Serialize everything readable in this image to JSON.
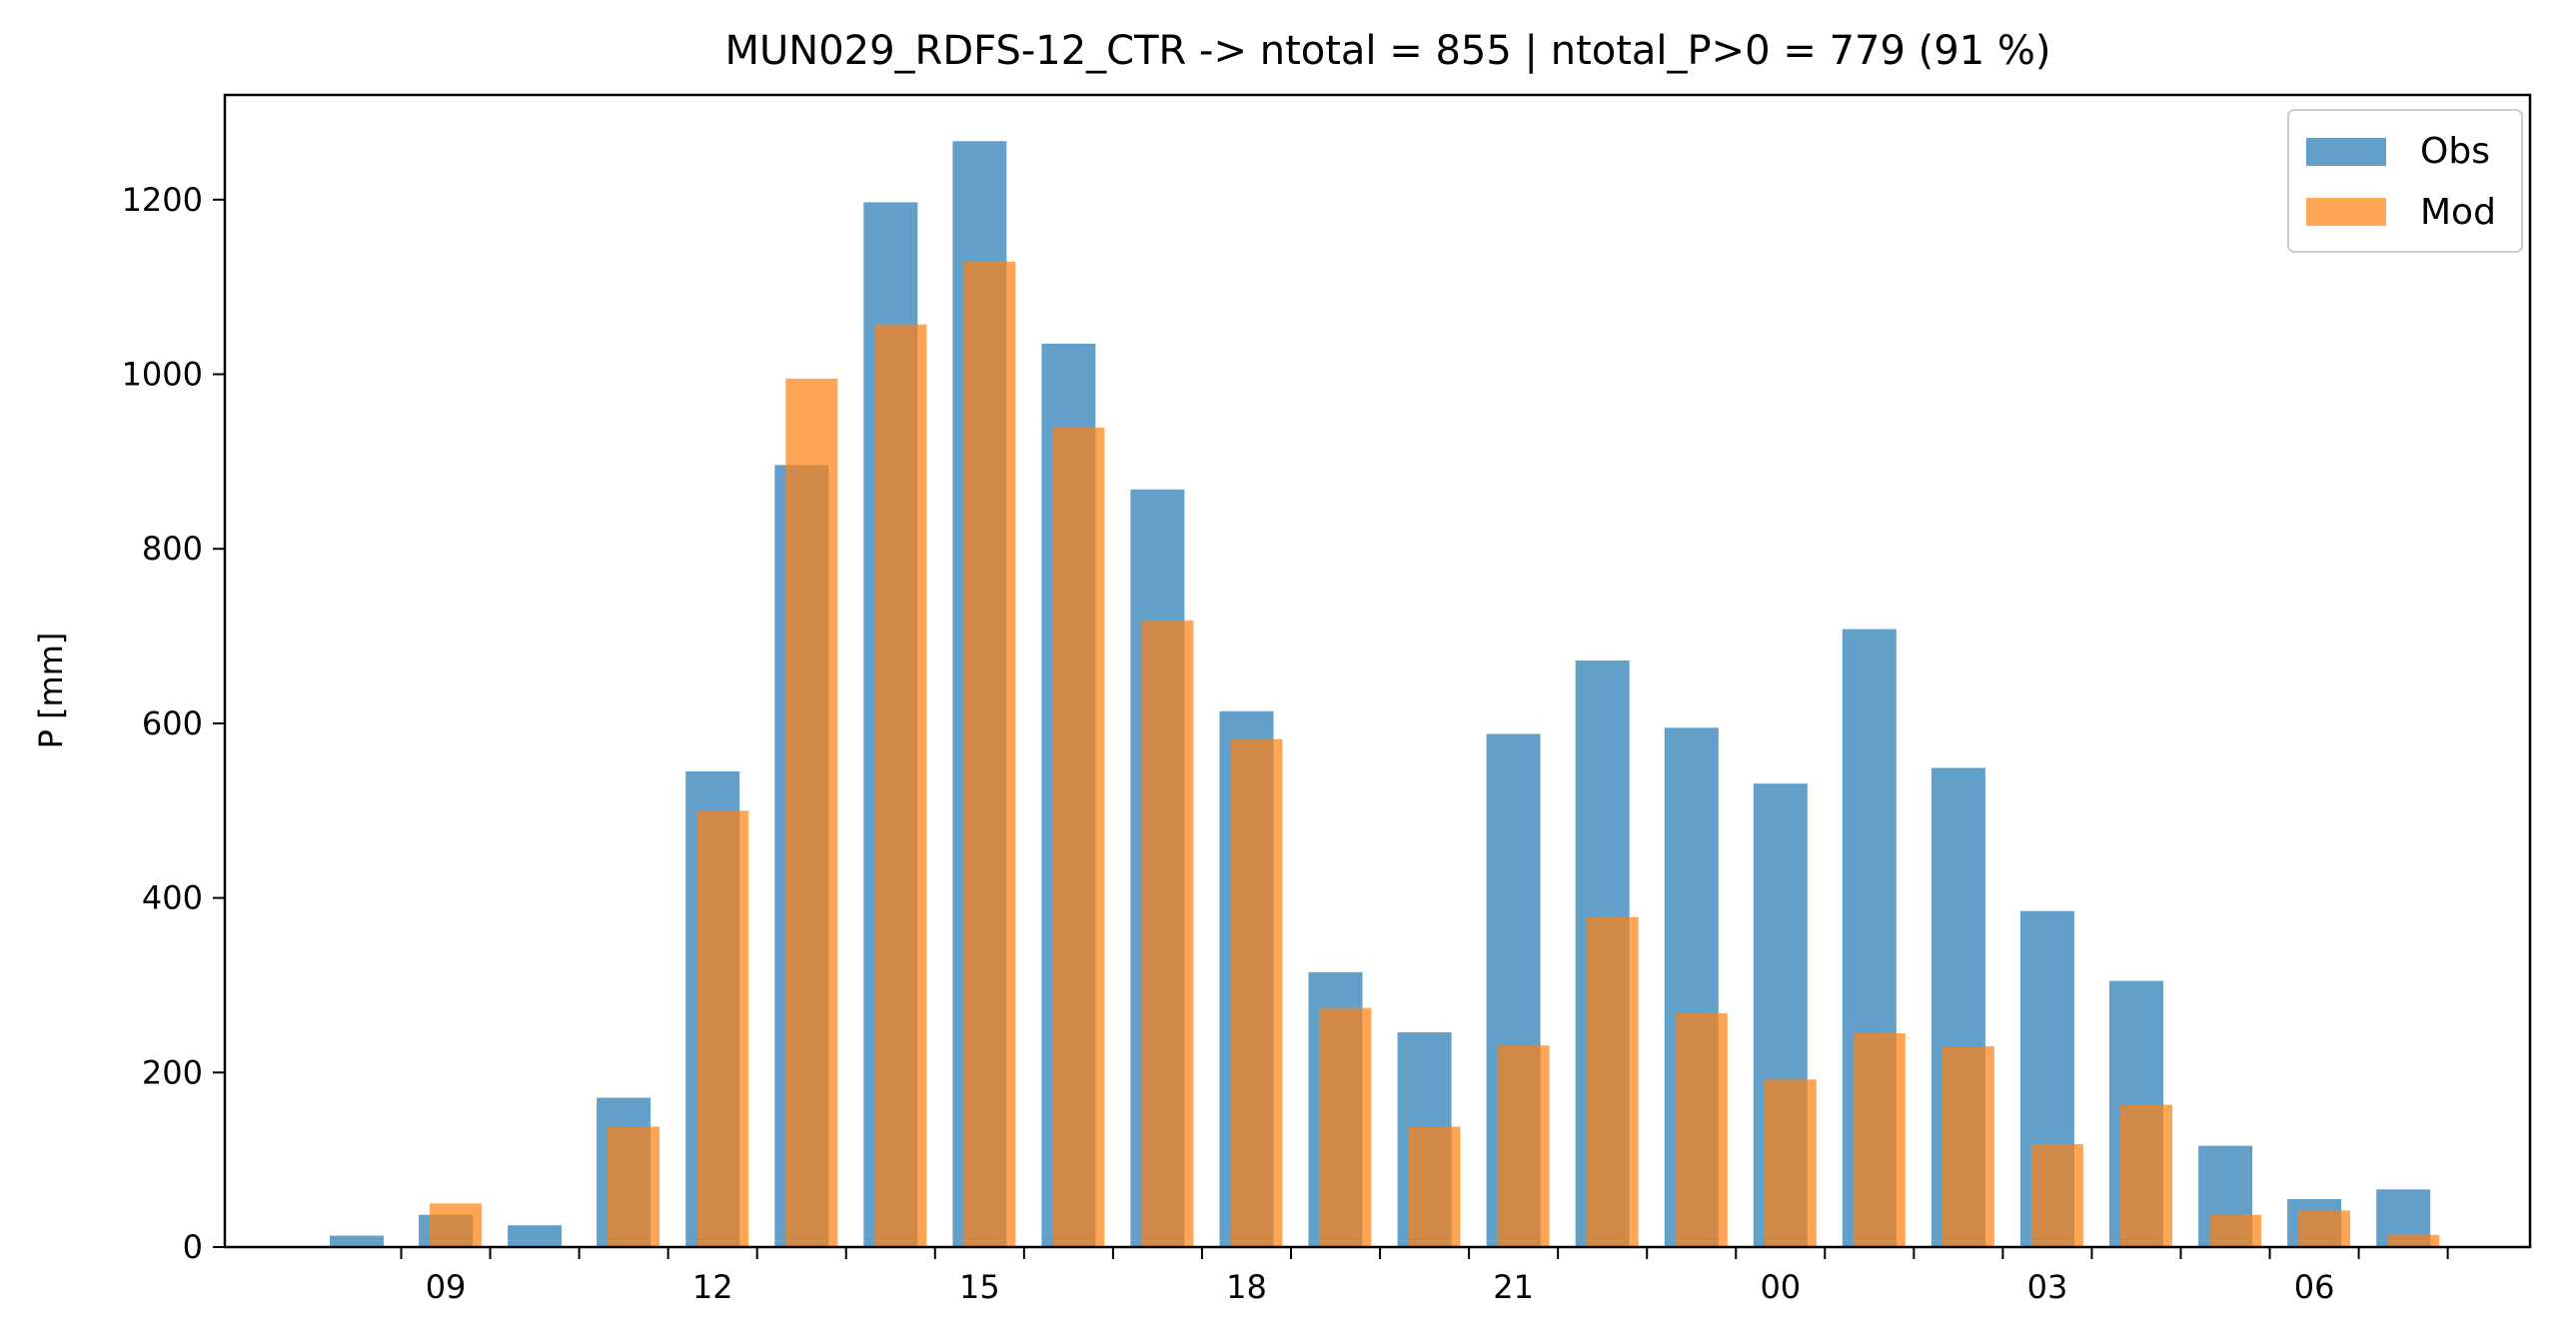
{
  "chart_data": {
    "type": "bar",
    "title": "MUN029_RDFS-12_CTR -> ntotal = 855 | ntotal_P>0 = 779 (91 %)",
    "xlabel": "",
    "ylabel": "P [mm]",
    "ylim": [
      0,
      1320
    ],
    "yticks": [
      0,
      200,
      400,
      600,
      800,
      1000,
      1200
    ],
    "hours": [
      8,
      9,
      10,
      11,
      12,
      13,
      14,
      15,
      16,
      17,
      18,
      19,
      20,
      21,
      22,
      23,
      0,
      1,
      2,
      3,
      4,
      5,
      6,
      7
    ],
    "xtick_labels": [
      "09",
      "12",
      "15",
      "18",
      "21",
      "00",
      "03",
      "06"
    ],
    "xtick_hours": [
      9,
      12,
      15,
      18,
      21,
      0,
      3,
      6
    ],
    "grid": false,
    "legend_position": "top-right",
    "series": [
      {
        "name": "Obs",
        "color": "#1f77b4",
        "opacity": 0.7,
        "values": [
          13,
          37,
          25,
          171,
          545,
          896,
          1197,
          1267,
          1035,
          868,
          614,
          315,
          246,
          588,
          672,
          595,
          531,
          708,
          549,
          385,
          305,
          116,
          55,
          66
        ]
      },
      {
        "name": "Mod",
        "color": "#ff7f0e",
        "opacity": 0.7,
        "values": [
          0,
          50,
          0,
          138,
          500,
          995,
          1057,
          1129,
          939,
          718,
          582,
          274,
          138,
          231,
          378,
          268,
          192,
          245,
          230,
          118,
          163,
          37,
          42,
          14
        ]
      }
    ]
  }
}
